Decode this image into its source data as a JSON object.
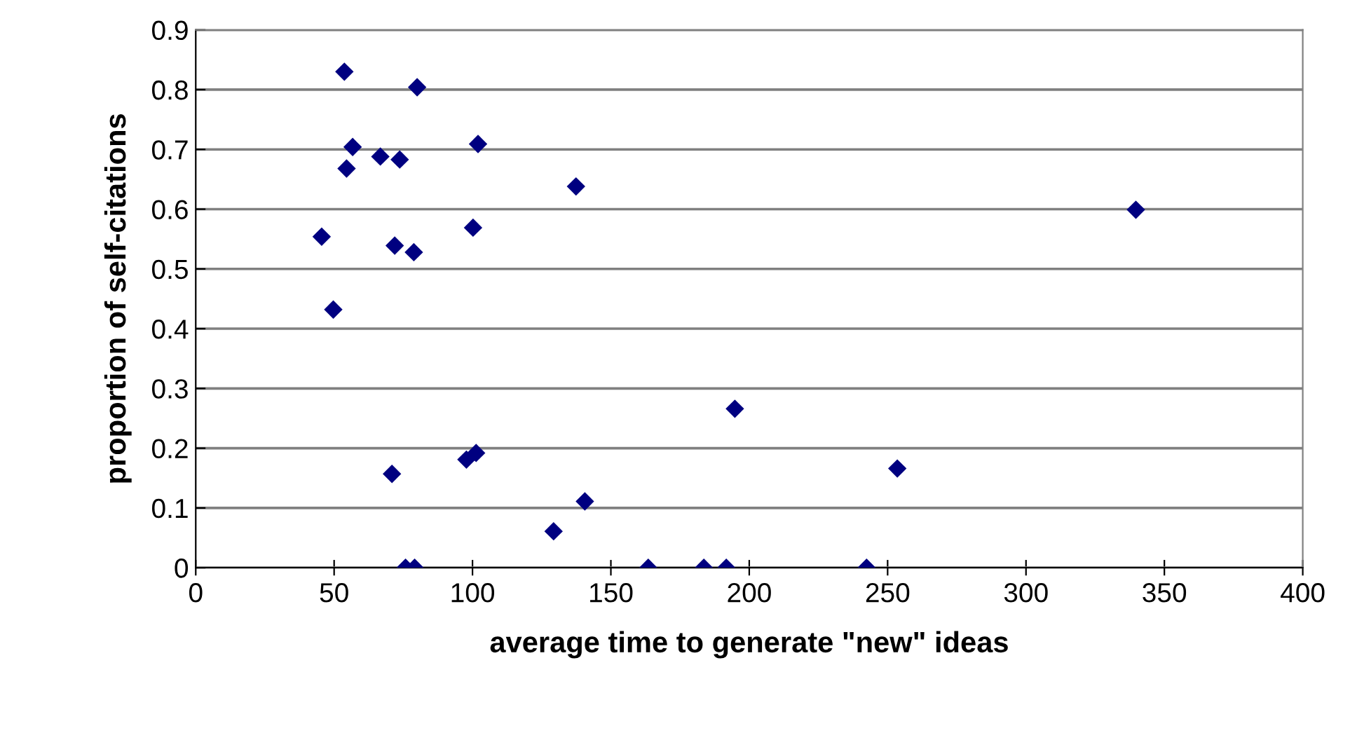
{
  "chart_data": {
    "type": "scatter",
    "xlabel": "average time to generate \"new\" ideas",
    "ylabel": "proportion of self-citations",
    "x": [
      53.7,
      80.0,
      56.7,
      54.5,
      66.7,
      73.7,
      102,
      137.4,
      45.5,
      100.2,
      71.9,
      78.8,
      49.7,
      70.9,
      97.8,
      101.3,
      140.6,
      129.3,
      75.8,
      79.1,
      163.5,
      183.6,
      191.7,
      242.4,
      194.8,
      253.5,
      339.7
    ],
    "values": [
      0.83,
      0.804,
      0.704,
      0.668,
      0.688,
      0.683,
      0.709,
      0.638,
      0.554,
      0.569,
      0.539,
      0.528,
      0.432,
      0.157,
      0.181,
      0.192,
      0.111,
      0.061,
      0,
      0,
      0,
      0,
      0,
      0,
      0.266,
      0.166,
      0.599
    ],
    "color": "#000080",
    "marker": "diamond",
    "xlim": [
      0,
      400
    ],
    "xticks": [
      0,
      50,
      100,
      150,
      200,
      250,
      300,
      350,
      400
    ],
    "ylim": [
      0,
      0.9
    ],
    "yticks": [
      0,
      0.1,
      0.2,
      0.3,
      0.4,
      0.5,
      0.6,
      0.7,
      0.8,
      0.9
    ],
    "grid": "y",
    "legend": false
  }
}
